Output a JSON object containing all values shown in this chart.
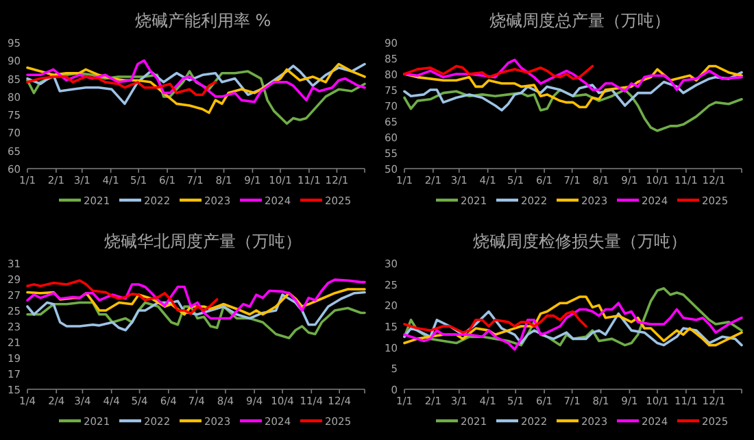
{
  "chart_data": [
    {
      "type": "line",
      "title": "烧碱产能利用率 %",
      "xlim": [
        "--01-01",
        "--12-31"
      ],
      "xticks": [
        {
          "value": "--01-01",
          "label": "1/1"
        },
        {
          "value": "--02-01",
          "label": "2/1"
        },
        {
          "value": "--03-01",
          "label": "3/1"
        },
        {
          "value": "--04-01",
          "label": "4/1"
        },
        {
          "value": "--05-01",
          "label": "5/1"
        },
        {
          "value": "--06-01",
          "label": "6/1"
        },
        {
          "value": "--07-01",
          "label": "7/1"
        },
        {
          "value": "--08-01",
          "label": "8/1"
        },
        {
          "value": "--09-01",
          "label": "9/1"
        },
        {
          "value": "--10-01",
          "label": "10/1"
        },
        {
          "value": "--11-01",
          "label": "11/1"
        },
        {
          "value": "--12-01",
          "label": "12/1"
        }
      ],
      "ylim": [
        60,
        95
      ],
      "yticks": [
        60,
        65,
        70,
        75,
        80,
        85,
        90,
        95
      ],
      "legend": "bottom",
      "series": [
        {
          "name": "2021",
          "color": "#70ad47",
          "x": [
            "--01-01",
            "--01-08",
            "--01-15",
            "--01-29",
            "--02-12",
            "--02-26",
            "--03-12",
            "--03-26",
            "--04-09",
            "--04-23",
            "--05-07",
            "--05-21",
            "--05-28",
            "--06-04",
            "--06-18",
            "--06-25",
            "--07-02",
            "--07-16",
            "--07-30",
            "--08-13",
            "--08-27",
            "--09-10",
            "--09-17",
            "--09-24",
            "--10-08",
            "--10-15",
            "--10-22",
            "--10-29",
            "--11-05",
            "--11-19",
            "--12-03",
            "--12-17",
            "--12-31"
          ],
          "values": [
            84.5,
            81,
            84,
            85.5,
            86,
            86.5,
            86,
            85,
            85.5,
            85.5,
            85.5,
            86,
            80,
            80,
            84,
            87,
            84,
            82,
            86.5,
            86.5,
            87,
            85,
            79,
            76,
            72.5,
            74,
            73.5,
            74,
            76,
            80,
            82,
            81.5,
            83.5
          ]
        },
        {
          "name": "2022",
          "color": "#9dc3e6",
          "x": [
            "--01-01",
            "--01-15",
            "--01-29",
            "--02-05",
            "--02-19",
            "--03-05",
            "--03-19",
            "--04-02",
            "--04-16",
            "--04-30",
            "--05-14",
            "--05-28",
            "--06-11",
            "--06-25",
            "--07-09",
            "--07-23",
            "--07-30",
            "--08-13",
            "--08-27",
            "--09-10",
            "--09-24",
            "--10-08",
            "--10-15",
            "--10-22",
            "--11-05",
            "--11-19",
            "--12-03",
            "--12-17",
            "--12-31"
          ],
          "values": [
            85,
            83.5,
            86,
            81.5,
            82,
            82.5,
            82.5,
            82,
            78,
            84,
            87,
            84,
            86.5,
            84.5,
            86,
            86.5,
            84,
            85,
            80.5,
            82,
            84.5,
            87,
            88.5,
            87,
            83,
            86,
            88,
            87,
            89
          ]
        },
        {
          "name": "2023",
          "color": "#ffc000",
          "x": [
            "--01-01",
            "--01-15",
            "--01-29",
            "--02-12",
            "--02-26",
            "--03-05",
            "--03-19",
            "--04-02",
            "--04-16",
            "--04-30",
            "--05-14",
            "--05-28",
            "--06-11",
            "--06-25",
            "--07-09",
            "--07-16",
            "--07-23",
            "--07-30",
            "--08-06",
            "--08-20",
            "--09-03",
            "--09-17",
            "--10-01",
            "--10-08",
            "--10-22",
            "--11-05",
            "--11-19",
            "--11-26",
            "--12-03",
            "--12-17",
            "--12-31"
          ],
          "values": [
            88,
            87,
            86,
            86.5,
            86.5,
            87.5,
            86,
            85,
            84.5,
            84.5,
            84,
            81,
            78,
            77.5,
            76.5,
            75.5,
            79,
            78,
            81,
            82,
            81,
            83,
            85,
            87.5,
            84.5,
            85.5,
            84,
            87,
            89,
            87,
            85.5
          ]
        },
        {
          "name": "2024",
          "color": "#ff00ff",
          "x": [
            "--01-01",
            "--01-15",
            "--01-29",
            "--02-12",
            "--02-26",
            "--03-12",
            "--03-26",
            "--04-09",
            "--04-23",
            "--04-30",
            "--05-07",
            "--05-14",
            "--05-21",
            "--05-28",
            "--06-04",
            "--06-18",
            "--06-25",
            "--07-09",
            "--07-23",
            "--07-30",
            "--08-13",
            "--08-20",
            "--09-03",
            "--09-10",
            "--09-24",
            "--10-08",
            "--10-15",
            "--10-29",
            "--11-05",
            "--11-12",
            "--11-26",
            "--12-03",
            "--12-10",
            "--12-24",
            "--12-31"
          ],
          "values": [
            86,
            86,
            87.5,
            84.5,
            86,
            85,
            86,
            84,
            84.5,
            89,
            90,
            87,
            85,
            81,
            81,
            85,
            85.5,
            83,
            80,
            80,
            81,
            79,
            78.5,
            81.5,
            84,
            84,
            83,
            79,
            82.5,
            81.5,
            82.5,
            84.5,
            85,
            83,
            82.5
          ]
        },
        {
          "name": "2025",
          "color": "#ff0000",
          "x": [
            "--01-01",
            "--01-15",
            "--01-29",
            "--02-12",
            "--02-19",
            "--03-05",
            "--03-19",
            "--03-26",
            "--04-09",
            "--04-16",
            "--04-30",
            "--05-07",
            "--05-21",
            "--06-04",
            "--06-11",
            "--06-25",
            "--07-02",
            "--07-09",
            "--07-16",
            "--07-23"
          ],
          "values": [
            84,
            85,
            85.5,
            85.5,
            84,
            85.5,
            85,
            84,
            83.5,
            82.5,
            84,
            82.5,
            82.5,
            83.5,
            81,
            82,
            80.5,
            80.5,
            83,
            84
          ]
        }
      ]
    },
    {
      "type": "line",
      "title": "烧碱周度总产量（万吨）",
      "xlim": [
        "--01-01",
        "--12-31"
      ],
      "xticks": [
        {
          "value": "--01-01",
          "label": "1/1"
        },
        {
          "value": "--02-01",
          "label": "2/1"
        },
        {
          "value": "--03-01",
          "label": "3/1"
        },
        {
          "value": "--04-01",
          "label": "4/1"
        },
        {
          "value": "--05-01",
          "label": "5/1"
        },
        {
          "value": "--06-01",
          "label": "6/1"
        },
        {
          "value": "--07-01",
          "label": "7/1"
        },
        {
          "value": "--08-01",
          "label": "8/1"
        },
        {
          "value": "--09-01",
          "label": "9/1"
        },
        {
          "value": "--10-01",
          "label": "10/1"
        },
        {
          "value": "--11-01",
          "label": "11/1"
        },
        {
          "value": "--12-01",
          "label": "12/1"
        }
      ],
      "ylim": [
        50,
        90
      ],
      "yticks": [
        50,
        55,
        60,
        65,
        70,
        75,
        80,
        85,
        90
      ],
      "legend": "bottom",
      "series": [
        {
          "name": "2021",
          "color": "#70ad47",
          "x": [
            "--01-01",
            "--01-08",
            "--01-15",
            "--01-29",
            "--02-12",
            "--02-26",
            "--03-12",
            "--03-26",
            "--04-09",
            "--04-23",
            "--05-07",
            "--05-14",
            "--05-21",
            "--05-28",
            "--06-04",
            "--06-11",
            "--06-18",
            "--07-02",
            "--07-16",
            "--07-30",
            "--08-13",
            "--08-27",
            "--09-03",
            "--09-10",
            "--09-17",
            "--09-24",
            "--10-01",
            "--10-15",
            "--10-22",
            "--10-29",
            "--11-12",
            "--11-26",
            "--12-03",
            "--12-17",
            "--12-31"
          ],
          "values": [
            72.5,
            69,
            71.5,
            72,
            74,
            74.5,
            73,
            73.5,
            73,
            73.5,
            74,
            73,
            73.5,
            68.5,
            69,
            73,
            75,
            73,
            73.5,
            71.5,
            73,
            75,
            73,
            70,
            66,
            63,
            62,
            63.5,
            63.5,
            64,
            66.5,
            70,
            71,
            70.5,
            72
          ]
        },
        {
          "name": "2022",
          "color": "#9dc3e6",
          "x": [
            "--01-01",
            "--01-08",
            "--01-22",
            "--01-29",
            "--02-05",
            "--02-12",
            "--02-26",
            "--03-12",
            "--03-26",
            "--04-09",
            "--04-16",
            "--04-23",
            "--04-30",
            "--05-07",
            "--05-14",
            "--05-28",
            "--06-04",
            "--06-18",
            "--07-02",
            "--07-09",
            "--07-23",
            "--07-30",
            "--08-13",
            "--08-27",
            "--09-10",
            "--09-24",
            "--10-08",
            "--10-22",
            "--10-29",
            "--11-12",
            "--11-26",
            "--12-03",
            "--12-17",
            "--12-31"
          ],
          "values": [
            74.5,
            73,
            73.5,
            75,
            75,
            71,
            72.5,
            73.5,
            72.5,
            70,
            68.5,
            70.5,
            73.5,
            74,
            76,
            74,
            76,
            75,
            73,
            75.5,
            76.5,
            74,
            75,
            70,
            74,
            74,
            77.5,
            76,
            74,
            76.5,
            78.5,
            79,
            78.5,
            80.5
          ]
        },
        {
          "name": "2023",
          "color": "#ffc000",
          "x": [
            "--01-01",
            "--01-15",
            "--01-29",
            "--02-12",
            "--02-26",
            "--03-12",
            "--03-19",
            "--03-26",
            "--04-02",
            "--04-16",
            "--04-30",
            "--05-07",
            "--05-21",
            "--05-28",
            "--06-04",
            "--06-18",
            "--06-25",
            "--07-02",
            "--07-09",
            "--07-16",
            "--07-23",
            "--07-30",
            "--08-06",
            "--08-20",
            "--09-03",
            "--09-10",
            "--09-24",
            "--10-01",
            "--10-15",
            "--10-29",
            "--11-05",
            "--11-12",
            "--11-26",
            "--12-03",
            "--12-17",
            "--12-31"
          ],
          "values": [
            80,
            79,
            78.5,
            78,
            78,
            79,
            76,
            76,
            78,
            77,
            77,
            76,
            76.5,
            73,
            73.5,
            71.5,
            71,
            71,
            69.5,
            69.5,
            72.5,
            72,
            75,
            75.5,
            76,
            77.5,
            79,
            81.5,
            78,
            79,
            79.5,
            78,
            82.5,
            82.5,
            80.5,
            79.5
          ]
        },
        {
          "name": "2024",
          "color": "#ff00ff",
          "x": [
            "--01-01",
            "--01-15",
            "--01-29",
            "--02-12",
            "--02-26",
            "--03-12",
            "--03-26",
            "--04-09",
            "--04-23",
            "--04-30",
            "--05-07",
            "--05-21",
            "--05-28",
            "--06-11",
            "--06-25",
            "--07-02",
            "--07-16",
            "--07-23",
            "--07-30",
            "--08-06",
            "--08-13",
            "--08-27",
            "--09-03",
            "--09-10",
            "--09-17",
            "--09-24",
            "--10-08",
            "--10-15",
            "--10-22",
            "--10-29",
            "--11-12",
            "--11-26",
            "--12-10",
            "--12-31"
          ],
          "values": [
            80,
            79.5,
            81,
            79,
            80,
            80,
            79.5,
            79,
            83.5,
            84.5,
            82,
            79,
            77,
            79,
            81,
            80,
            77,
            75,
            75,
            77,
            77,
            74.5,
            77,
            76,
            79,
            79.5,
            79.5,
            78,
            75,
            78,
            78.5,
            81,
            78.5,
            79
          ]
        },
        {
          "name": "2025",
          "color": "#ff0000",
          "x": [
            "--01-01",
            "--01-15",
            "--01-29",
            "--02-12",
            "--02-26",
            "--03-05",
            "--03-12",
            "--03-26",
            "--04-02",
            "--04-16",
            "--04-30",
            "--05-14",
            "--05-28",
            "--06-04",
            "--06-11",
            "--06-18",
            "--06-25",
            "--07-02",
            "--07-09",
            "--07-23"
          ],
          "values": [
            80,
            81.5,
            82,
            80,
            82.5,
            82,
            80,
            80.5,
            79,
            80.5,
            81.5,
            80.5,
            82,
            81,
            79.5,
            79,
            80,
            78.5,
            79,
            82.5
          ]
        }
      ]
    },
    {
      "type": "line",
      "title": "烧碱华北周度产量（万吨）",
      "xlim": [
        "--01-04",
        "--12-31"
      ],
      "xticks": [
        {
          "value": "--01-04",
          "label": "1/4"
        },
        {
          "value": "--02-04",
          "label": "2/4"
        },
        {
          "value": "--03-04",
          "label": "3/4"
        },
        {
          "value": "--04-04",
          "label": "4/4"
        },
        {
          "value": "--05-04",
          "label": "5/4"
        },
        {
          "value": "--06-04",
          "label": "6/4"
        },
        {
          "value": "--07-04",
          "label": "7/4"
        },
        {
          "value": "--08-04",
          "label": "8/4"
        },
        {
          "value": "--09-04",
          "label": "9/4"
        },
        {
          "value": "--10-04",
          "label": "10/4"
        },
        {
          "value": "--11-04",
          "label": "11/4"
        },
        {
          "value": "--12-04",
          "label": "12/4"
        }
      ],
      "ylim": [
        15,
        31
      ],
      "yticks": [
        15,
        17,
        19,
        21,
        23,
        25,
        27,
        29,
        31
      ],
      "legend": "bottom",
      "series": [
        {
          "name": "2021",
          "color": "#70ad47",
          "x": [
            "--01-04",
            "--01-18",
            "--02-01",
            "--02-15",
            "--03-01",
            "--03-15",
            "--03-22",
            "--03-29",
            "--04-05",
            "--04-19",
            "--04-26",
            "--05-03",
            "--05-10",
            "--05-24",
            "--06-07",
            "--06-14",
            "--06-21",
            "--06-28",
            "--07-05",
            "--07-12",
            "--07-19",
            "--07-26",
            "--08-02",
            "--08-16",
            "--08-30",
            "--09-13",
            "--09-27",
            "--10-11",
            "--10-18",
            "--10-25",
            "--11-01",
            "--11-08",
            "--11-15",
            "--11-29",
            "--12-13",
            "--12-27",
            "--12-31"
          ],
          "values": [
            24.5,
            24.5,
            25.8,
            25.8,
            26,
            26,
            24.5,
            24.5,
            23.5,
            24,
            23.5,
            25,
            26,
            25.5,
            23.5,
            23.2,
            25.5,
            25.5,
            24,
            24.2,
            23,
            22.8,
            25.5,
            24,
            24,
            23.5,
            22,
            21.5,
            22.5,
            23,
            22.2,
            22,
            23.5,
            25,
            25.3,
            24.7,
            24.7
          ]
        },
        {
          "name": "2022",
          "color": "#9dc3e6",
          "x": [
            "--01-04",
            "--01-11",
            "--01-25",
            "--02-01",
            "--02-08",
            "--02-15",
            "--03-01",
            "--03-15",
            "--03-22",
            "--04-05",
            "--04-12",
            "--04-19",
            "--04-26",
            "--05-03",
            "--05-10",
            "--05-24",
            "--06-07",
            "--06-14",
            "--06-21",
            "--07-05",
            "--07-19",
            "--08-02",
            "--08-09",
            "--08-16",
            "--08-30",
            "--09-13",
            "--09-27",
            "--10-04",
            "--10-18",
            "--10-25",
            "--11-01",
            "--11-08",
            "--11-22",
            "--12-06",
            "--12-20",
            "--12-31"
          ],
          "values": [
            25.5,
            24.5,
            26,
            25.8,
            23.5,
            23,
            23,
            23.2,
            23.1,
            23.5,
            22.8,
            22.5,
            23.5,
            25,
            25,
            26,
            26,
            26.2,
            24.8,
            24.5,
            25,
            25.5,
            25,
            24.5,
            24,
            24.7,
            25,
            27,
            26,
            25,
            23.2,
            23.2,
            25.5,
            26.5,
            27.2,
            27.3
          ]
        },
        {
          "name": "2023",
          "color": "#ffc000",
          "x": [
            "--01-04",
            "--01-18",
            "--02-01",
            "--02-08",
            "--02-22",
            "--03-01",
            "--03-08",
            "--03-22",
            "--03-29",
            "--04-12",
            "--04-26",
            "--05-03",
            "--05-17",
            "--05-31",
            "--06-07",
            "--06-21",
            "--06-28",
            "--07-05",
            "--07-12",
            "--07-19",
            "--08-02",
            "--08-16",
            "--08-30",
            "--09-06",
            "--09-13",
            "--09-27",
            "--10-11",
            "--10-18",
            "--10-25",
            "--11-01",
            "--11-15",
            "--11-29",
            "--12-13",
            "--12-31"
          ],
          "values": [
            27.3,
            27.2,
            27.3,
            26.4,
            26.6,
            26.6,
            27.2,
            25,
            25,
            26,
            25.8,
            27,
            26.5,
            25.5,
            25.8,
            24.5,
            25.5,
            25.5,
            25.5,
            25.2,
            25.8,
            25.2,
            24.5,
            25,
            24.5,
            25.5,
            27.2,
            26.5,
            25.5,
            25.8,
            26.5,
            27.2,
            27.7,
            27.7
          ]
        },
        {
          "name": "2024",
          "color": "#ff00ff",
          "x": [
            "--01-04",
            "--01-11",
            "--01-18",
            "--02-01",
            "--02-08",
            "--02-22",
            "--03-01",
            "--03-08",
            "--03-15",
            "--03-22",
            "--04-05",
            "--04-19",
            "--04-26",
            "--05-03",
            "--05-10",
            "--05-17",
            "--05-24",
            "--05-31",
            "--06-14",
            "--06-21",
            "--06-28",
            "--07-05",
            "--07-12",
            "--07-19",
            "--08-02",
            "--08-09",
            "--08-23",
            "--08-30",
            "--09-06",
            "--09-13",
            "--09-20",
            "--10-04",
            "--10-11",
            "--10-18",
            "--10-25",
            "--11-01",
            "--11-08",
            "--11-15",
            "--11-22",
            "--11-29",
            "--12-13",
            "--12-27",
            "--12-31"
          ],
          "values": [
            26.3,
            27,
            26.6,
            27.2,
            26.5,
            26.7,
            26.6,
            27.2,
            27.2,
            26.3,
            27,
            26.5,
            28.3,
            28.3,
            28,
            27.2,
            26.3,
            25.6,
            28,
            28,
            25.5,
            26,
            24.7,
            24,
            24,
            24,
            25.8,
            25.5,
            27,
            26.6,
            27.5,
            27.4,
            27.2,
            26.3,
            25,
            26.6,
            26.3,
            27.5,
            28.5,
            28.9,
            28.8,
            28.6,
            28.6
          ]
        },
        {
          "name": "2025",
          "color": "#ff0000",
          "x": [
            "--01-04",
            "--01-11",
            "--01-18",
            "--02-01",
            "--02-15",
            "--03-01",
            "--03-08",
            "--03-15",
            "--03-29",
            "--04-05",
            "--04-12",
            "--04-19",
            "--04-26",
            "--05-03",
            "--05-10",
            "--05-24",
            "--05-31",
            "--06-07",
            "--06-14",
            "--06-21",
            "--06-28",
            "--07-05",
            "--07-12",
            "--07-19",
            "--07-26"
          ],
          "values": [
            28.1,
            28.3,
            28.1,
            28.5,
            28.3,
            28.8,
            28.3,
            27.5,
            27.3,
            26.8,
            26.5,
            26.7,
            27.1,
            27,
            26.3,
            26.7,
            27.2,
            26.3,
            25,
            25,
            24.6,
            25.5,
            25,
            25.6,
            26.4
          ]
        }
      ]
    },
    {
      "type": "line",
      "title": "烧碱周度检修损失量（万吨）",
      "xlim": [
        "--01-01",
        "--12-31"
      ],
      "xticks": [
        {
          "value": "--01-01",
          "label": "1/1"
        },
        {
          "value": "--02-01",
          "label": "2/1"
        },
        {
          "value": "--03-01",
          "label": "3/1"
        },
        {
          "value": "--04-01",
          "label": "4/1"
        },
        {
          "value": "--05-01",
          "label": "5/1"
        },
        {
          "value": "--06-01",
          "label": "6/1"
        },
        {
          "value": "--07-01",
          "label": "7/1"
        },
        {
          "value": "--08-01",
          "label": "8/1"
        },
        {
          "value": "--09-01",
          "label": "9/1"
        },
        {
          "value": "--10-01",
          "label": "10/1"
        },
        {
          "value": "--11-01",
          "label": "11/1"
        },
        {
          "value": "--12-01",
          "label": "12/1"
        }
      ],
      "ylim": [
        0,
        30
      ],
      "yticks": [
        0,
        5,
        10,
        15,
        20,
        25,
        30
      ],
      "legend": "bottom",
      "series": [
        {
          "name": "2021",
          "color": "#70ad47",
          "x": [
            "--01-01",
            "--01-08",
            "--01-15",
            "--01-29",
            "--02-12",
            "--02-26",
            "--03-12",
            "--03-26",
            "--04-09",
            "--04-23",
            "--05-07",
            "--05-14",
            "--05-21",
            "--05-28",
            "--06-04",
            "--06-18",
            "--06-25",
            "--07-02",
            "--07-16",
            "--07-23",
            "--07-30",
            "--08-13",
            "--08-27",
            "--09-03",
            "--09-10",
            "--09-17",
            "--09-24",
            "--10-01",
            "--10-08",
            "--10-15",
            "--10-22",
            "--10-29",
            "--11-12",
            "--11-26",
            "--12-03",
            "--12-17",
            "--12-31"
          ],
          "values": [
            12.5,
            16.5,
            14,
            12,
            11.5,
            11,
            12.5,
            12.5,
            12,
            11.5,
            10.5,
            13,
            16,
            13,
            12.5,
            10.5,
            13,
            12,
            12.5,
            14,
            11.5,
            12,
            10.5,
            11,
            13,
            17,
            21,
            23.5,
            24,
            22.5,
            23,
            22.5,
            19.5,
            16.5,
            15.5,
            16,
            14
          ]
        },
        {
          "name": "2022",
          "color": "#9dc3e6",
          "x": [
            "--01-01",
            "--01-08",
            "--01-15",
            "--01-29",
            "--02-05",
            "--02-19",
            "--03-05",
            "--03-19",
            "--04-02",
            "--04-16",
            "--04-30",
            "--05-07",
            "--05-14",
            "--05-21",
            "--06-04",
            "--06-11",
            "--06-25",
            "--07-02",
            "--07-16",
            "--07-23",
            "--07-30",
            "--08-06",
            "--08-20",
            "--09-03",
            "--09-17",
            "--10-01",
            "--10-08",
            "--10-22",
            "--10-29",
            "--11-12",
            "--11-19",
            "--11-26",
            "--12-10",
            "--12-24",
            "--12-31"
          ],
          "values": [
            12.5,
            14.5,
            14,
            12.5,
            16.5,
            15,
            13,
            15.5,
            18.5,
            14.5,
            13,
            11,
            13,
            14,
            12.5,
            12,
            13.5,
            12,
            12,
            13.5,
            14,
            13,
            18,
            14,
            13.5,
            11,
            10.5,
            12.5,
            14.5,
            14,
            12.5,
            11,
            12.5,
            12,
            10.5
          ]
        },
        {
          "name": "2023",
          "color": "#ffc000",
          "x": [
            "--01-01",
            "--01-15",
            "--01-29",
            "--02-12",
            "--02-26",
            "--03-05",
            "--03-19",
            "--04-02",
            "--04-09",
            "--04-23",
            "--05-07",
            "--05-14",
            "--05-21",
            "--05-28",
            "--06-04",
            "--06-18",
            "--06-25",
            "--07-09",
            "--07-16",
            "--07-23",
            "--07-30",
            "--08-06",
            "--08-20",
            "--09-03",
            "--09-10",
            "--09-17",
            "--09-24",
            "--10-08",
            "--10-22",
            "--10-29",
            "--11-05",
            "--11-19",
            "--11-26",
            "--12-03",
            "--12-17",
            "--12-31"
          ],
          "values": [
            11,
            12,
            12.5,
            13,
            13,
            12,
            14.5,
            14,
            13,
            14,
            15,
            15,
            15,
            18,
            18.5,
            20.5,
            20.5,
            22,
            22,
            19.5,
            20,
            17,
            17.5,
            16,
            17,
            14.5,
            14.5,
            11.5,
            14,
            13,
            14.5,
            12,
            10.5,
            10.5,
            12,
            13.5
          ]
        },
        {
          "name": "2024",
          "color": "#ff00ff",
          "x": [
            "--01-01",
            "--01-15",
            "--01-22",
            "--01-29",
            "--02-05",
            "--02-12",
            "--02-26",
            "--03-12",
            "--03-26",
            "--04-02",
            "--04-09",
            "--04-23",
            "--04-30",
            "--05-07",
            "--05-14",
            "--05-21",
            "--05-28",
            "--06-04",
            "--06-18",
            "--06-25",
            "--07-09",
            "--07-16",
            "--07-23",
            "--07-30",
            "--08-06",
            "--08-13",
            "--08-20",
            "--08-27",
            "--09-03",
            "--09-10",
            "--09-24",
            "--10-08",
            "--10-15",
            "--10-22",
            "--10-29",
            "--11-12",
            "--11-19",
            "--11-26",
            "--12-03",
            "--12-17",
            "--12-31"
          ],
          "values": [
            13,
            12,
            11.5,
            12,
            14,
            13,
            13,
            13,
            12.5,
            14,
            12.5,
            11,
            9.5,
            12,
            16.5,
            16.5,
            13,
            13.5,
            15,
            17,
            19,
            19,
            18.5,
            17.5,
            19,
            19,
            20.5,
            18,
            18.5,
            16,
            15.5,
            15.5,
            17,
            19,
            17,
            16.5,
            17,
            15.5,
            13.5,
            15.5,
            17
          ]
        },
        {
          "name": "2025",
          "color": "#ff0000",
          "x": [
            "--01-01",
            "--01-15",
            "--01-29",
            "--02-12",
            "--02-19",
            "--03-05",
            "--03-12",
            "--03-19",
            "--03-26",
            "--04-02",
            "--04-09",
            "--04-23",
            "--04-30",
            "--05-07",
            "--05-14",
            "--05-21",
            "--05-28",
            "--06-04",
            "--06-11",
            "--06-18",
            "--06-25",
            "--07-02",
            "--07-09",
            "--07-16"
          ],
          "values": [
            15.5,
            14.5,
            14,
            15,
            15,
            13.5,
            14,
            16.5,
            16.5,
            15,
            16.5,
            16,
            15,
            16,
            16,
            15,
            16,
            17.5,
            17.5,
            16.5,
            18,
            18.5,
            16.5,
            15
          ]
        }
      ]
    }
  ]
}
